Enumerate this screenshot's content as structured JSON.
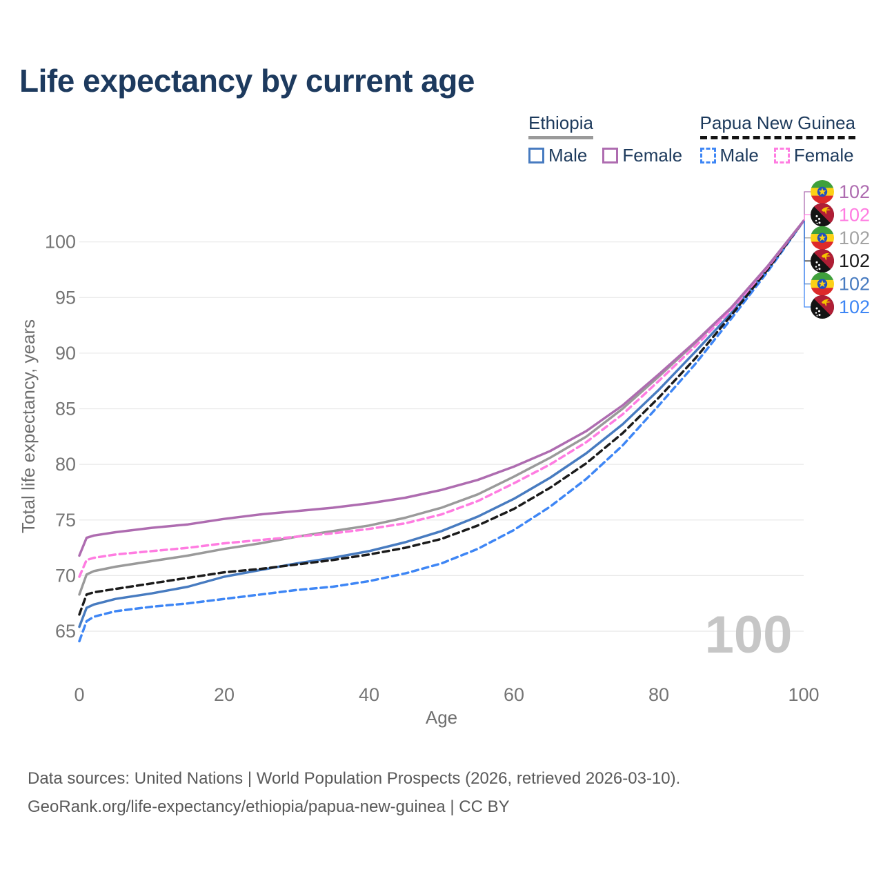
{
  "header": {
    "title": "Life expectancy by current age"
  },
  "legend": {
    "groups": [
      {
        "label": "Ethiopia",
        "line_style": "solid",
        "underline_color": "#9a9a9a",
        "items": [
          {
            "label": "Male",
            "color": "#477bc0",
            "dash": false
          },
          {
            "label": "Female",
            "color": "#ae6cb0",
            "dash": false
          }
        ]
      },
      {
        "label": "Papua New Guinea",
        "line_style": "dashed",
        "underline_color": "#141414",
        "items": [
          {
            "label": "Male",
            "color": "#3e86f5",
            "dash": true
          },
          {
            "label": "Female",
            "color": "#ff7ce1",
            "dash": true
          }
        ]
      }
    ]
  },
  "chart_data": {
    "type": "line",
    "title": "Life expectancy by current age",
    "xlabel": "Age",
    "ylabel": "Total life expectancy, years",
    "x_ticks": [
      0,
      20,
      40,
      60,
      80,
      100
    ],
    "y_ticks": [
      65,
      70,
      75,
      80,
      85,
      90,
      95,
      100
    ],
    "xlim": [
      0,
      100
    ],
    "ylim": [
      63,
      103
    ],
    "grid": "horizontal-only",
    "legend_position": "top-right",
    "hover_age_watermark": "100",
    "x": [
      0,
      1,
      2,
      5,
      10,
      15,
      20,
      25,
      30,
      35,
      40,
      45,
      50,
      55,
      60,
      65,
      70,
      75,
      80,
      85,
      90,
      95,
      100
    ],
    "series": [
      {
        "name": "Ethiopia Female",
        "country": "Ethiopia",
        "sex": "Female",
        "color": "#ae6cb0",
        "dash": false,
        "values": [
          71.8,
          73.4,
          73.6,
          73.9,
          74.3,
          74.6,
          75.1,
          75.5,
          75.8,
          76.1,
          76.5,
          77.0,
          77.7,
          78.6,
          79.8,
          81.2,
          83.0,
          85.3,
          88.1,
          91.0,
          94.1,
          97.8,
          101.9
        ]
      },
      {
        "name": "Papua New Guinea Female",
        "country": "Papua New Guinea",
        "sex": "Female",
        "color": "#ff7ce1",
        "dash": true,
        "values": [
          69.9,
          71.4,
          71.6,
          71.9,
          72.2,
          72.5,
          72.9,
          73.2,
          73.5,
          73.8,
          74.2,
          74.7,
          75.5,
          76.7,
          78.3,
          80.0,
          82.0,
          84.5,
          87.5,
          90.6,
          93.9,
          97.7,
          101.9
        ]
      },
      {
        "name": "Ethiopia All",
        "country": "Ethiopia",
        "sex": "All",
        "color": "#9a9a9a",
        "dash": false,
        "values": [
          68.3,
          70.1,
          70.4,
          70.8,
          71.3,
          71.8,
          72.4,
          72.9,
          73.5,
          74.0,
          74.5,
          75.2,
          76.1,
          77.3,
          78.9,
          80.6,
          82.5,
          85.0,
          87.9,
          90.9,
          94.0,
          97.8,
          101.9
        ]
      },
      {
        "name": "Papua New Guinea All",
        "country": "Papua New Guinea",
        "sex": "All",
        "color": "#1b1b1b",
        "dash": true,
        "values": [
          66.5,
          68.3,
          68.5,
          68.8,
          69.3,
          69.8,
          70.3,
          70.6,
          71.0,
          71.4,
          71.9,
          72.5,
          73.3,
          74.5,
          76.0,
          77.9,
          80.1,
          82.8,
          86.0,
          89.5,
          93.4,
          97.5,
          101.9
        ]
      },
      {
        "name": "Ethiopia Male",
        "country": "Ethiopia",
        "sex": "Male",
        "color": "#477bc0",
        "dash": false,
        "values": [
          65.4,
          67.1,
          67.4,
          67.9,
          68.4,
          69.0,
          69.9,
          70.5,
          71.1,
          71.6,
          72.2,
          73.0,
          74.0,
          75.3,
          76.9,
          78.8,
          81.0,
          83.6,
          86.7,
          90.1,
          93.6,
          97.6,
          101.9
        ]
      },
      {
        "name": "Papua New Guinea Male",
        "country": "Papua New Guinea",
        "sex": "Male",
        "color": "#3e86f5",
        "dash": true,
        "values": [
          64.1,
          65.9,
          66.3,
          66.8,
          67.2,
          67.5,
          67.9,
          68.3,
          68.7,
          69.0,
          69.5,
          70.2,
          71.1,
          72.4,
          74.1,
          76.2,
          78.7,
          81.7,
          85.3,
          89.0,
          93.1,
          97.3,
          101.9
        ]
      }
    ],
    "end_labels": [
      {
        "value": "102",
        "color": "#ae6cb0",
        "flag": "ethiopia"
      },
      {
        "value": "102",
        "color": "#ff7ce1",
        "flag": "png"
      },
      {
        "value": "102",
        "color": "#a3a3a3",
        "flag": "ethiopia"
      },
      {
        "value": "102",
        "color": "#1b1b1b",
        "flag": "png"
      },
      {
        "value": "102",
        "color": "#477bc0",
        "flag": "ethiopia"
      },
      {
        "value": "102",
        "color": "#3e86f5",
        "flag": "png"
      }
    ]
  },
  "footer": {
    "line1": "Data sources: United Nations | World Population Prospects (2026, retrieved 2026-03-10).",
    "line2": "GeoRank.org/life-expectancy/ethiopia/papua-new-guinea | CC BY"
  }
}
